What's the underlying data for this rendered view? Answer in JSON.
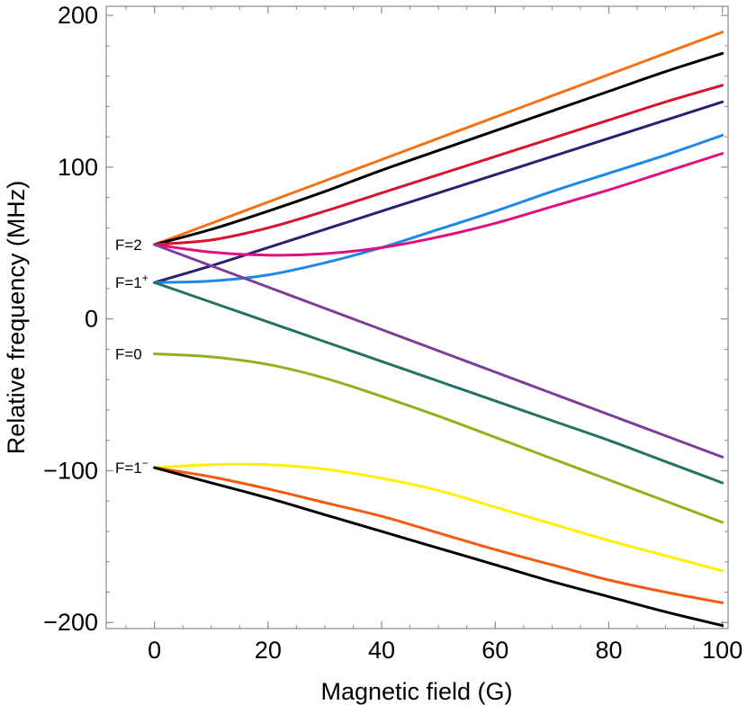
{
  "chart_data": {
    "type": "line",
    "xlabel": "Magnetic field (G)",
    "ylabel": "Relative frequency (MHz)",
    "xlim": [
      -8.5,
      101
    ],
    "ylim": [
      -204,
      206
    ],
    "x_ticks": [
      0,
      20,
      40,
      60,
      80,
      100
    ],
    "x_tick_labels": [
      "0",
      "20",
      "40",
      "60",
      "80",
      "100"
    ],
    "y_ticks": [
      -200,
      -100,
      0,
      100,
      200
    ],
    "y_tick_labels": [
      "−200",
      "−100",
      "0",
      "100",
      "200"
    ],
    "grid": false,
    "x": [
      0,
      10,
      20,
      30,
      40,
      50,
      60,
      70,
      80,
      90,
      100
    ],
    "series": [
      {
        "color": "#f47216",
        "values": [
          49,
          63,
          77,
          91,
          105,
          119,
          133,
          147,
          161,
          175,
          189
        ]
      },
      {
        "color": "#000000",
        "values": [
          49,
          59,
          71,
          84,
          98,
          111,
          124,
          137,
          150,
          163,
          175
        ]
      },
      {
        "color": "#d7142e",
        "values": [
          49,
          52,
          60,
          71,
          83,
          95,
          107,
          119,
          131,
          143,
          154
        ]
      },
      {
        "color": "#2b2171",
        "values": [
          24,
          35,
          47,
          59,
          71,
          83,
          95,
          107,
          119,
          131,
          143
        ]
      },
      {
        "color": "#1e88e5",
        "values": [
          24,
          25,
          29,
          37,
          47,
          59,
          71,
          84,
          96,
          108,
          121
        ]
      },
      {
        "color": "#e0117f",
        "values": [
          49,
          44,
          42,
          43,
          47,
          54,
          63,
          74,
          85,
          97,
          109
        ]
      },
      {
        "color": "#7b3f98",
        "values": [
          49,
          35,
          21,
          7,
          -7,
          -21,
          -35,
          -49,
          -63,
          -77,
          -91
        ]
      },
      {
        "color": "#267066",
        "values": [
          24,
          11,
          -2,
          -15,
          -28,
          -41,
          -54,
          -67,
          -80,
          -94,
          -108
        ]
      },
      {
        "color": "#8db31e",
        "values": [
          -23,
          -25,
          -30,
          -39,
          -51,
          -64,
          -78,
          -92,
          -106,
          -120,
          -134
        ]
      },
      {
        "color": "#ffef00",
        "values": [
          -98,
          -96,
          -96,
          -99,
          -105,
          -113,
          -124,
          -135,
          -146,
          -156,
          -166
        ]
      },
      {
        "color": "#f45b12",
        "values": [
          -98,
          -104,
          -112,
          -121,
          -130,
          -141,
          -152,
          -162,
          -172,
          -180,
          -187
        ]
      },
      {
        "color": "#000000",
        "values": [
          -98,
          -108,
          -118,
          -129,
          -140,
          -151,
          -162,
          -173,
          -183,
          -193,
          -202
        ]
      }
    ],
    "annotations": [
      {
        "text": "F=2",
        "sup": "",
        "y": 49
      },
      {
        "text": "F=1",
        "sup": "+",
        "y": 24
      },
      {
        "text": "F=0",
        "sup": "",
        "y": -23
      },
      {
        "text": "F=1",
        "sup": "−",
        "y": -98
      }
    ]
  }
}
